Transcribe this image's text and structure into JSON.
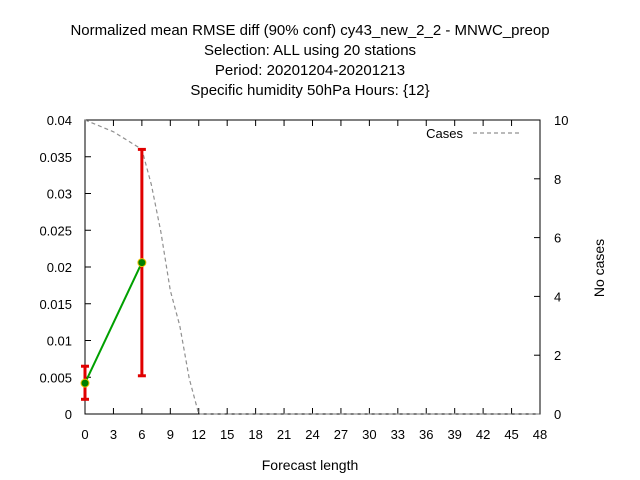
{
  "chart_data": {
    "type": "line",
    "title_lines": [
      "Normalized mean RMSE diff (90% conf) cy43_new_2_2 - MNWC_preop",
      "Selection: ALL using    20 stations",
      "Period: 20201204-20201213",
      "Specific humidity 50hPa   Hours: {12}"
    ],
    "xlabel": "Forecast length",
    "ylabel": "",
    "y2label": "No cases",
    "xlim": [
      0,
      48
    ],
    "ylim": [
      0,
      0.04
    ],
    "y2lim": [
      0,
      10
    ],
    "xticks": [
      0,
      3,
      6,
      9,
      12,
      15,
      18,
      21,
      24,
      27,
      30,
      33,
      36,
      39,
      42,
      45,
      48
    ],
    "yticks": [
      0,
      0.005,
      0.01,
      0.015,
      0.02,
      0.025,
      0.03,
      0.035,
      0.04
    ],
    "ytick_labels": [
      "0",
      "0.005",
      "0.01",
      "0.015",
      "0.02",
      "0.025",
      "0.03",
      "0.035",
      "0.04"
    ],
    "y2ticks": [
      0,
      2,
      4,
      6,
      8,
      10
    ],
    "grid": false,
    "legend_position": "top-right",
    "series": [
      {
        "kind": "mean_diff",
        "color": "#00a000",
        "marker_color": "#008000",
        "x": [
          0,
          6
        ],
        "y": [
          0.0042,
          0.0206
        ],
        "err_low": [
          0.002,
          0.0052
        ],
        "err_high": [
          0.0065,
          0.036
        ],
        "errbar_color": "#e00000"
      },
      {
        "kind": "cases",
        "name": "Cases",
        "color": "#909090",
        "dashed": true,
        "axis": "y2",
        "x": [
          0,
          3,
          5,
          6,
          7,
          8,
          9,
          10,
          11,
          12,
          15,
          18,
          21,
          24,
          27,
          30,
          33,
          36,
          39,
          42,
          45,
          48
        ],
        "y": [
          10,
          9.6,
          9.2,
          9.0,
          7.8,
          6.2,
          4.2,
          3.0,
          1.2,
          0,
          0,
          0,
          0,
          0,
          0,
          0,
          0,
          0,
          0,
          0,
          0,
          0
        ]
      }
    ]
  }
}
